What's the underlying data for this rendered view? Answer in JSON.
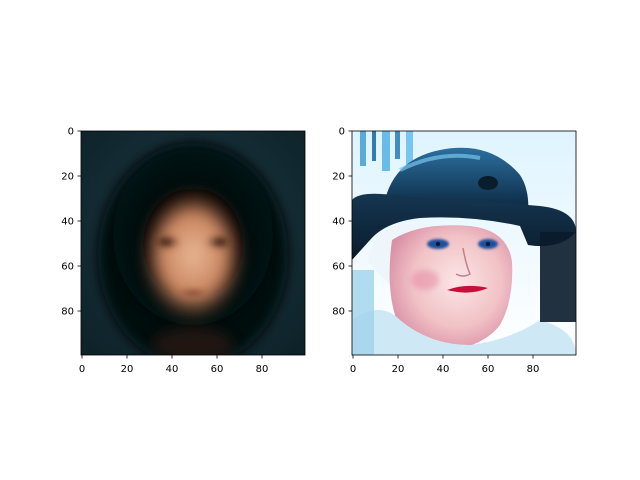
{
  "figure": {
    "panels": [
      {
        "image_description": "blurred average face, dark background, warm skin tones",
        "x_ticks": [
          "0",
          "20",
          "40",
          "60",
          "80"
        ],
        "y_ticks": [
          "0",
          "20",
          "40",
          "60",
          "80"
        ]
      },
      {
        "image_description": "elderly woman with white hair wearing a wide-brimmed blue hat, oversaturated colors",
        "x_ticks": [
          "0",
          "20",
          "40",
          "60",
          "80"
        ],
        "y_ticks": [
          "0",
          "20",
          "40",
          "60",
          "80"
        ]
      }
    ]
  },
  "colors": {
    "axis": "#000000",
    "background": "#ffffff"
  }
}
